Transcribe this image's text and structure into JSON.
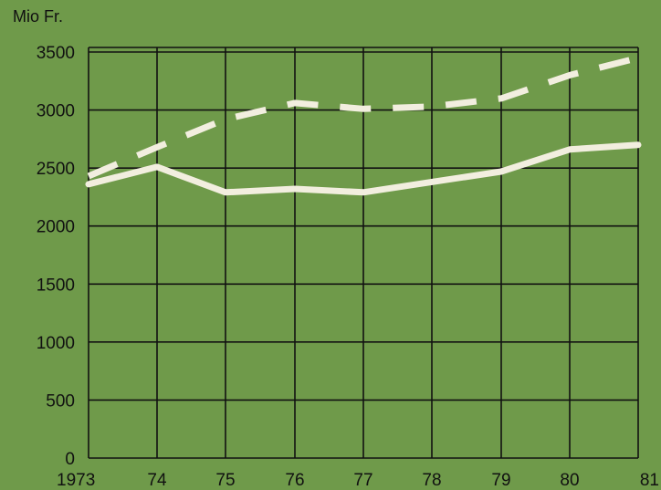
{
  "chart_data": {
    "type": "line",
    "title": "",
    "xlabel": "",
    "ylabel": "Mio Fr.",
    "x": [
      1973,
      1974,
      1975,
      1976,
      1977,
      1978,
      1979,
      1980,
      1981
    ],
    "x_tick_labels": [
      "1973",
      "74",
      "75",
      "76",
      "77",
      "78",
      "79",
      "80",
      "81"
    ],
    "y_ticks": [
      0,
      500,
      1000,
      1500,
      2000,
      2500,
      3000,
      3500
    ],
    "ylim": [
      0,
      3500
    ],
    "grid": true,
    "legend": "none",
    "series": [
      {
        "style": "dashed",
        "color": "#f2eedf",
        "values": [
          2430,
          2680,
          2920,
          3060,
          3010,
          3030,
          3100,
          3300,
          3450
        ]
      },
      {
        "style": "solid",
        "color": "#f2eedf",
        "values": [
          2360,
          2510,
          2290,
          2320,
          2290,
          2380,
          2470,
          2660,
          2700
        ]
      }
    ]
  },
  "colors": {
    "background": "#6f9a4a",
    "grid": "#111111",
    "line": "#f2eedf",
    "text": "#111111"
  }
}
